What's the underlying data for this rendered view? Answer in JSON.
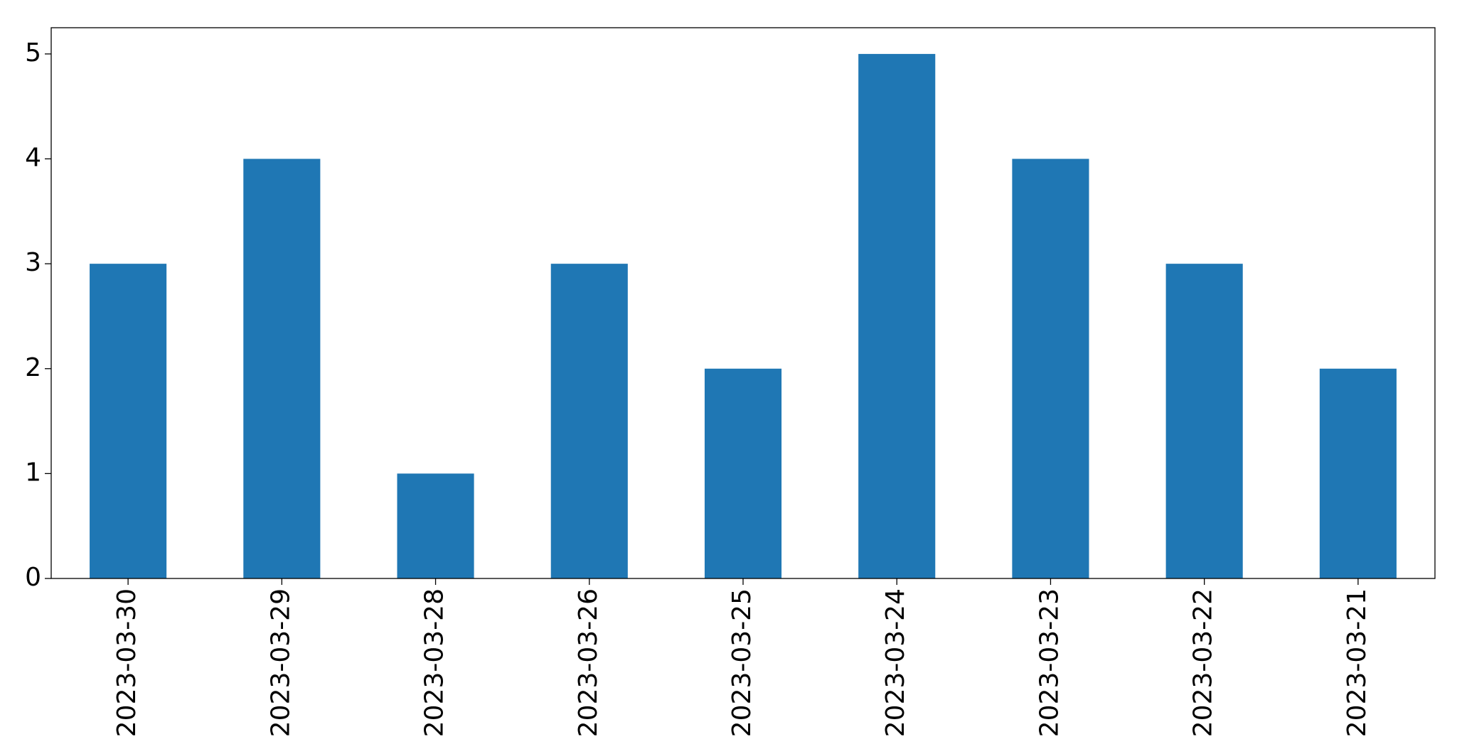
{
  "chart_data": {
    "type": "bar",
    "categories": [
      "2023-03-30",
      "2023-03-29",
      "2023-03-28",
      "2023-03-26",
      "2023-03-25",
      "2023-03-24",
      "2023-03-23",
      "2023-03-22",
      "2023-03-21"
    ],
    "values": [
      3,
      4,
      1,
      3,
      2,
      5,
      4,
      3,
      2
    ],
    "color": "#1f77b4",
    "ylim": [
      0,
      5.25
    ],
    "yticks": [
      0,
      1,
      2,
      3,
      4,
      5
    ],
    "grid": false
  }
}
